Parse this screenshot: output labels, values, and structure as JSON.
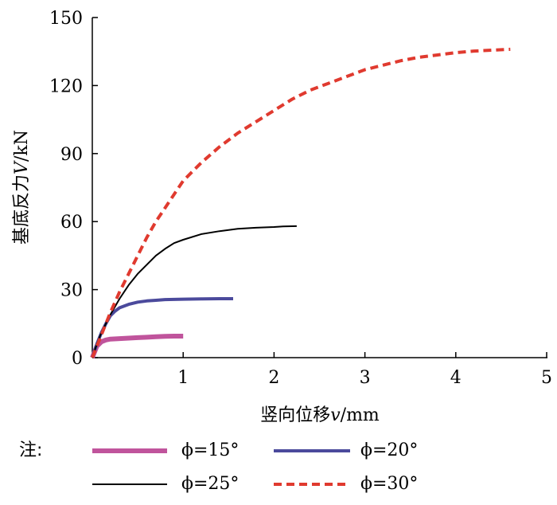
{
  "chart_data": {
    "type": "line",
    "xlabel": {
      "prefix": "竖向位移",
      "var": "v",
      "unit": "/mm"
    },
    "ylabel": {
      "prefix": "基底反力",
      "var": "V",
      "unit": "/kN"
    },
    "xlim": [
      0,
      5
    ],
    "ylim": [
      0,
      150
    ],
    "xticks": [
      1,
      2,
      3,
      4,
      5
    ],
    "yticks": [
      0,
      30,
      60,
      90,
      120,
      150
    ],
    "xtick_labels": [
      "1",
      "2",
      "3",
      "4",
      "5"
    ],
    "ytick_labels": [
      "0",
      "30",
      "60",
      "90",
      "120",
      "150"
    ],
    "grid": false,
    "legend_note": "注:",
    "series": [
      {
        "name": "ϕ=15°",
        "color": "#c0549c",
        "style": "solid-thick",
        "x": [
          0,
          0.05,
          0.1,
          0.15,
          0.2,
          0.3,
          0.4,
          0.5,
          0.6,
          0.7,
          0.8,
          0.9,
          1.0
        ],
        "y": [
          0,
          5,
          7,
          7.8,
          8.2,
          8.4,
          8.6,
          8.8,
          9,
          9.2,
          9.4,
          9.5,
          9.5
        ]
      },
      {
        "name": "ϕ=20°",
        "color": "#4b4a9c",
        "style": "solid-medium",
        "x": [
          0,
          0.05,
          0.1,
          0.15,
          0.2,
          0.25,
          0.3,
          0.4,
          0.5,
          0.6,
          0.7,
          0.8,
          1.0,
          1.2,
          1.4,
          1.55
        ],
        "y": [
          0,
          6,
          11,
          15,
          18.5,
          20.5,
          22,
          23.5,
          24.5,
          25,
          25.3,
          25.6,
          25.8,
          25.9,
          26,
          26
        ]
      },
      {
        "name": "ϕ=25°",
        "color": "#000000",
        "style": "solid-thin",
        "x": [
          0,
          0.05,
          0.1,
          0.2,
          0.3,
          0.4,
          0.5,
          0.6,
          0.7,
          0.8,
          0.9,
          1.0,
          1.2,
          1.4,
          1.6,
          1.8,
          2.0,
          2.1,
          2.25
        ],
        "y": [
          0,
          6,
          11,
          19,
          26,
          32,
          37,
          41,
          45,
          48,
          50.5,
          52,
          54.5,
          55.8,
          56.8,
          57.3,
          57.6,
          57.9,
          58
        ]
      },
      {
        "name": "ϕ=30°",
        "color": "#e03a2f",
        "style": "dashed",
        "x": [
          0,
          0.1,
          0.2,
          0.3,
          0.4,
          0.5,
          0.6,
          0.7,
          0.8,
          0.9,
          1.0,
          1.2,
          1.4,
          1.6,
          1.8,
          2.0,
          2.2,
          2.4,
          2.6,
          2.8,
          3.0,
          3.2,
          3.4,
          3.6,
          3.8,
          4.0,
          4.2,
          4.4,
          4.6
        ],
        "y": [
          0,
          10,
          20,
          29,
          37,
          45,
          53,
          60,
          66,
          72,
          78,
          86,
          93,
          99,
          104,
          109,
          114,
          118,
          121,
          124,
          127,
          129,
          131,
          132.5,
          133.5,
          134.5,
          135.2,
          135.6,
          136
        ]
      }
    ]
  }
}
